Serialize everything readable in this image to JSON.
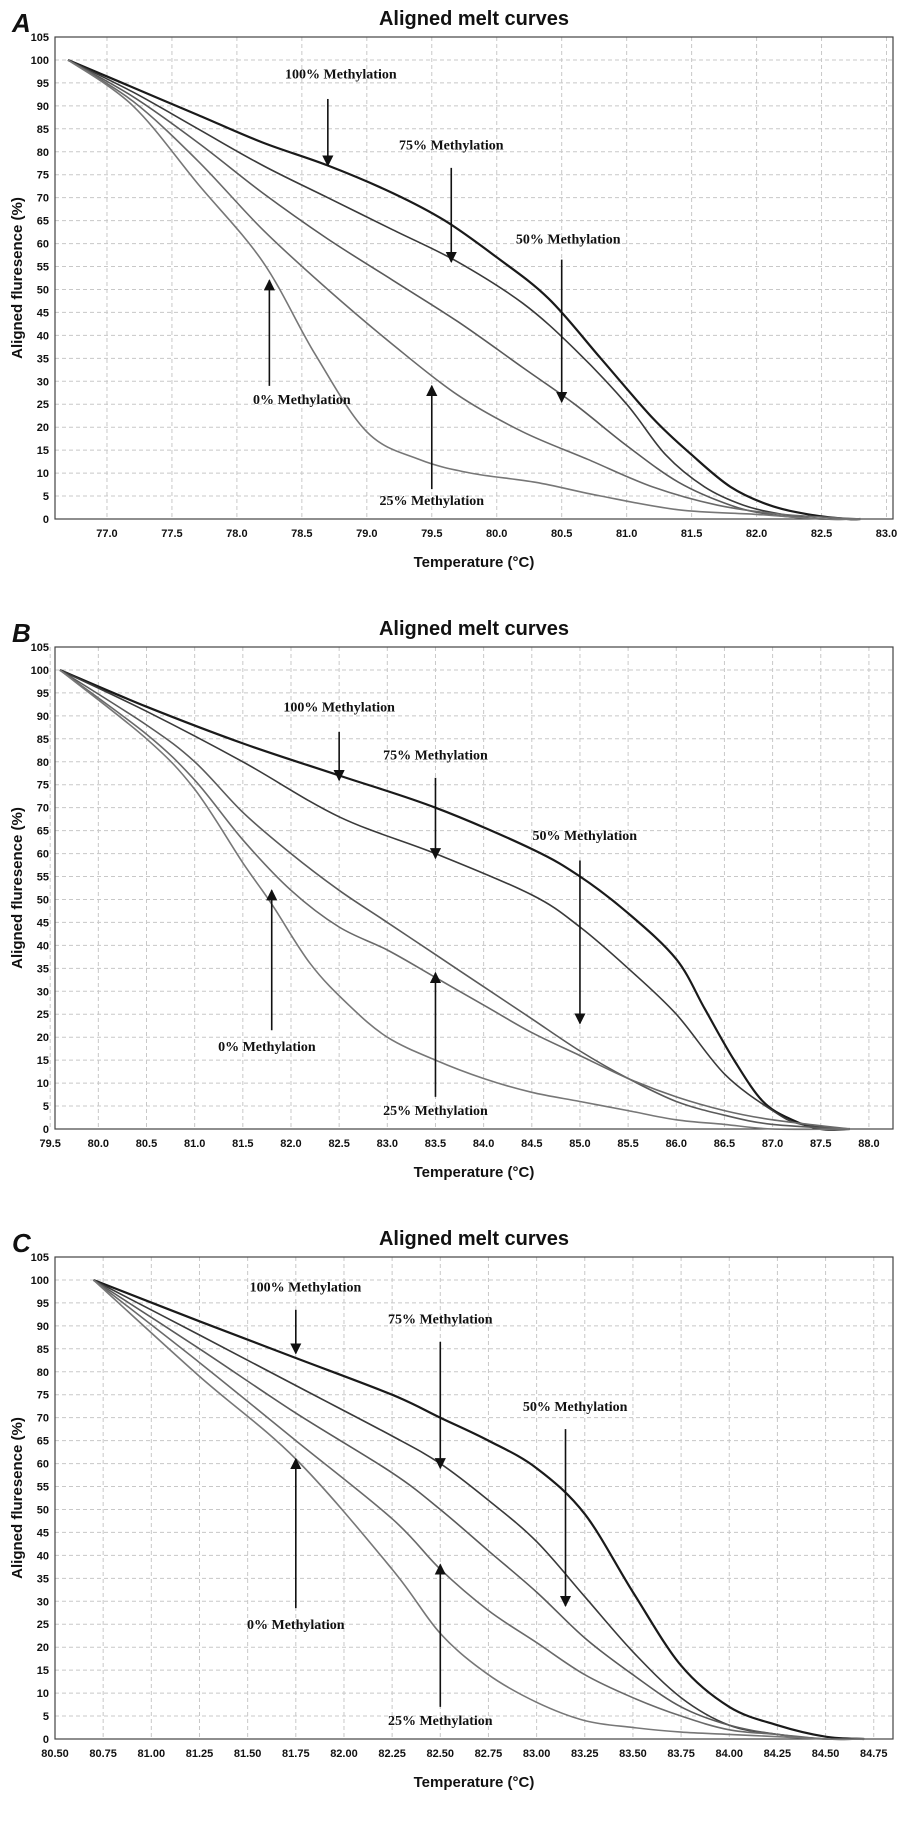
{
  "chart_data": [
    {
      "type": "line",
      "panel": "A",
      "title": "Aligned melt curves",
      "xlabel": "Temperature (°C)",
      "ylabel": "Aligned fluresence (%)",
      "xlim": [
        76.6,
        83.05
      ],
      "ylim": [
        0,
        105
      ],
      "xticks": [
        "77.0",
        "77.5",
        "78.0",
        "78.5",
        "79.0",
        "79.5",
        "80.0",
        "80.5",
        "81.0",
        "81.5",
        "82.0",
        "82.5",
        "83.0"
      ],
      "yticks": [
        0,
        5,
        10,
        15,
        20,
        25,
        30,
        35,
        40,
        45,
        50,
        55,
        60,
        65,
        70,
        75,
        80,
        85,
        90,
        95,
        100,
        105
      ],
      "grid": true,
      "series": [
        {
          "name": "100% Methylation",
          "color": "#1a1a1a",
          "x": [
            76.7,
            77.2,
            77.7,
            78.2,
            78.7,
            79.2,
            79.6,
            80.0,
            80.4,
            80.8,
            81.2,
            81.5,
            81.8,
            82.1,
            82.4,
            82.7,
            82.8
          ],
          "y": [
            100,
            94,
            88,
            82,
            77,
            71,
            65,
            57,
            48,
            35,
            22,
            14,
            7,
            3,
            1,
            0,
            0
          ]
        },
        {
          "name": "75% Methylation",
          "color": "#3a3a3a",
          "x": [
            76.7,
            77.2,
            77.7,
            78.2,
            78.7,
            79.2,
            79.7,
            80.2,
            80.6,
            81.0,
            81.3,
            81.6,
            81.9,
            82.2,
            82.5,
            82.8
          ],
          "y": [
            100,
            93,
            85,
            77,
            70,
            63,
            56,
            47,
            37,
            25,
            14,
            7,
            3,
            1,
            0,
            0
          ]
        },
        {
          "name": "50% Methylation",
          "color": "#5a5a5a",
          "x": [
            76.7,
            77.2,
            77.7,
            78.2,
            78.7,
            79.2,
            79.7,
            80.2,
            80.6,
            81.0,
            81.4,
            81.8,
            82.1,
            82.5,
            82.8
          ],
          "y": [
            100,
            92,
            82,
            71,
            61,
            52,
            43,
            33,
            25,
            16,
            8,
            3,
            1,
            0,
            0
          ]
        },
        {
          "name": "25% Methylation",
          "color": "#6a6a6a",
          "x": [
            76.7,
            77.2,
            77.7,
            78.2,
            78.7,
            79.2,
            79.7,
            80.2,
            80.7,
            81.2,
            81.7,
            82.2,
            82.8
          ],
          "y": [
            100,
            91,
            78,
            63,
            50,
            38,
            27,
            19,
            13,
            7,
            3,
            1,
            0
          ]
        },
        {
          "name": "0% Methylation",
          "color": "#777777",
          "x": [
            76.7,
            77.2,
            77.7,
            78.2,
            78.6,
            79.0,
            79.4,
            79.8,
            80.3,
            80.8,
            81.4,
            82.0,
            82.5,
            82.8
          ],
          "y": [
            100,
            90,
            73,
            56,
            36,
            19,
            13,
            10,
            8,
            5,
            2,
            1,
            0,
            0
          ]
        }
      ],
      "annotations": [
        {
          "text": "100% Methylation",
          "label_x": 78.8,
          "label_y": 96,
          "arrow_from": [
            78.7,
            91.5
          ],
          "arrow_to": [
            78.7,
            77
          ]
        },
        {
          "text": "75% Methylation",
          "label_x": 79.65,
          "label_y": 80.5,
          "arrow_from": [
            79.65,
            76.5
          ],
          "arrow_to": [
            79.65,
            56
          ]
        },
        {
          "text": "50% Methylation",
          "label_x": 80.55,
          "label_y": 60,
          "arrow_from": [
            80.5,
            56.5
          ],
          "arrow_to": [
            80.5,
            25.5
          ]
        },
        {
          "text": "0% Methylation",
          "label_x": 78.5,
          "label_y": 25,
          "arrow_from": [
            78.25,
            29
          ],
          "arrow_to": [
            78.25,
            52
          ]
        },
        {
          "text": "25% Methylation",
          "label_x": 79.5,
          "label_y": 3,
          "arrow_from": [
            79.5,
            6.5
          ],
          "arrow_to": [
            79.5,
            29
          ]
        }
      ]
    },
    {
      "type": "line",
      "panel": "B",
      "title": "Aligned melt curves",
      "xlabel": "Temperature (°C)",
      "ylabel": "Aligned fluresence (%)",
      "xlim": [
        79.55,
        88.25
      ],
      "ylim": [
        0,
        105
      ],
      "xticks": [
        "79.5",
        "80.0",
        "80.5",
        "81.0",
        "81.5",
        "82.0",
        "82.5",
        "83.0",
        "83.5",
        "84.0",
        "84.5",
        "85.0",
        "85.5",
        "86.0",
        "86.5",
        "87.0",
        "87.5",
        "88.0"
      ],
      "yticks": [
        0,
        5,
        10,
        15,
        20,
        25,
        30,
        35,
        40,
        45,
        50,
        55,
        60,
        65,
        70,
        75,
        80,
        85,
        90,
        95,
        100,
        105
      ],
      "grid": true,
      "series": [
        {
          "name": "100% Methylation",
          "color": "#1a1a1a",
          "x": [
            79.6,
            80.5,
            81.5,
            82.5,
            83.5,
            84.5,
            85.0,
            85.5,
            86.0,
            86.3,
            86.6,
            86.9,
            87.2,
            87.5,
            87.8
          ],
          "y": [
            100,
            92,
            84,
            77,
            70,
            61,
            55,
            47,
            37,
            26,
            15,
            6,
            2,
            0,
            0
          ]
        },
        {
          "name": "75% Methylation",
          "color": "#3a3a3a",
          "x": [
            79.6,
            80.5,
            81.5,
            82.5,
            83.5,
            84.5,
            85.0,
            85.5,
            86.0,
            86.5,
            87.0,
            87.3,
            87.8
          ],
          "y": [
            100,
            91,
            80,
            68,
            60,
            51,
            44,
            35,
            25,
            12,
            4,
            1,
            0
          ]
        },
        {
          "name": "50% Methylation",
          "color": "#5a5a5a",
          "x": [
            79.6,
            80.5,
            81.0,
            81.5,
            82.0,
            82.5,
            83.0,
            83.5,
            84.0,
            84.5,
            85.0,
            85.5,
            86.0,
            86.5,
            87.0,
            87.8
          ],
          "y": [
            100,
            88,
            80,
            69,
            60,
            52,
            45,
            38,
            31,
            24,
            17,
            11,
            6,
            3,
            1,
            0
          ]
        },
        {
          "name": "25% Methylation",
          "color": "#6a6a6a",
          "x": [
            79.6,
            80.5,
            81.0,
            81.5,
            82.0,
            82.5,
            83.0,
            83.5,
            84.0,
            84.5,
            85.0,
            85.5,
            86.0,
            86.5,
            87.0,
            87.8
          ],
          "y": [
            100,
            86,
            76,
            63,
            52,
            44,
            39,
            33,
            27,
            21,
            16,
            11,
            7,
            4,
            2,
            0
          ]
        },
        {
          "name": "0% Methylation",
          "color": "#777777",
          "x": [
            79.6,
            80.5,
            81.0,
            81.5,
            81.8,
            82.2,
            82.6,
            83.0,
            83.5,
            84.0,
            84.5,
            85.0,
            85.5,
            86.0,
            86.5,
            87.0,
            87.8
          ],
          "y": [
            100,
            85,
            74,
            58,
            49,
            36,
            27,
            20,
            15,
            11,
            8,
            6,
            4,
            2,
            1,
            0,
            0
          ]
        }
      ],
      "annotations": [
        {
          "text": "100% Methylation",
          "label_x": 82.5,
          "label_y": 91,
          "arrow_from": [
            82.5,
            86.5
          ],
          "arrow_to": [
            82.5,
            76
          ]
        },
        {
          "text": "75% Methylation",
          "label_x": 83.5,
          "label_y": 80.5,
          "arrow_from": [
            83.5,
            76.5
          ],
          "arrow_to": [
            83.5,
            59
          ]
        },
        {
          "text": "50% Methylation",
          "label_x": 85.05,
          "label_y": 63,
          "arrow_from": [
            85.0,
            58.5
          ],
          "arrow_to": [
            85.0,
            23
          ]
        },
        {
          "text": "0% Methylation",
          "label_x": 81.75,
          "label_y": 17,
          "arrow_from": [
            81.8,
            21.5
          ],
          "arrow_to": [
            81.8,
            52
          ]
        },
        {
          "text": "25% Methylation",
          "label_x": 83.5,
          "label_y": 3,
          "arrow_from": [
            83.5,
            7
          ],
          "arrow_to": [
            83.5,
            34
          ]
        }
      ]
    },
    {
      "type": "line",
      "panel": "C",
      "title": "Aligned melt curves",
      "xlabel": "Temperature (°C)",
      "ylabel": "Aligned fluresence (%)",
      "xlim": [
        80.5,
        84.85
      ],
      "ylim": [
        0,
        105
      ],
      "xticks": [
        "80.50",
        "80.75",
        "81.00",
        "81.25",
        "81.50",
        "81.75",
        "82.00",
        "82.25",
        "82.50",
        "82.75",
        "83.00",
        "83.25",
        "83.50",
        "83.75",
        "84.00",
        "84.25",
        "84.50",
        "84.75"
      ],
      "yticks": [
        0,
        5,
        10,
        15,
        20,
        25,
        30,
        35,
        40,
        45,
        50,
        55,
        60,
        65,
        70,
        75,
        80,
        85,
        90,
        95,
        100,
        105
      ],
      "grid": true,
      "series": [
        {
          "name": "100% Methylation",
          "color": "#1a1a1a",
          "x": [
            80.7,
            81.25,
            81.75,
            82.25,
            82.5,
            82.75,
            83.0,
            83.25,
            83.5,
            83.75,
            84.0,
            84.25,
            84.5,
            84.7
          ],
          "y": [
            100,
            91,
            83,
            75,
            70,
            65,
            59,
            49,
            32,
            16,
            7,
            3,
            0.5,
            0
          ]
        },
        {
          "name": "75% Methylation",
          "color": "#3a3a3a",
          "x": [
            80.7,
            81.25,
            81.75,
            82.25,
            82.5,
            82.75,
            83.0,
            83.25,
            83.5,
            83.75,
            84.0,
            84.25,
            84.5,
            84.7
          ],
          "y": [
            100,
            88,
            77,
            66,
            60,
            52,
            43,
            31,
            19,
            9,
            3,
            1,
            0,
            0
          ]
        },
        {
          "name": "50% Methylation",
          "color": "#5a5a5a",
          "x": [
            80.7,
            81.25,
            81.75,
            82.25,
            82.5,
            82.75,
            83.0,
            83.25,
            83.5,
            83.75,
            84.0,
            84.25,
            84.5,
            84.7
          ],
          "y": [
            100,
            85,
            71,
            58,
            50,
            41,
            32,
            22,
            14,
            7,
            3,
            1,
            0,
            0
          ]
        },
        {
          "name": "25% Methylation",
          "color": "#6a6a6a",
          "x": [
            80.7,
            81.25,
            81.75,
            82.25,
            82.5,
            82.75,
            83.0,
            83.25,
            83.5,
            83.75,
            84.0,
            84.25,
            84.5,
            84.7
          ],
          "y": [
            100,
            82,
            65,
            48,
            37,
            28,
            21,
            14,
            9,
            5,
            2,
            1,
            0,
            0
          ]
        },
        {
          "name": "0% Methylation",
          "color": "#777777",
          "x": [
            80.7,
            81.25,
            81.75,
            82.25,
            82.5,
            82.75,
            83.0,
            83.25,
            83.5,
            83.75,
            84.0,
            84.25,
            84.5,
            84.7
          ],
          "y": [
            100,
            79,
            61,
            37,
            23,
            14,
            8,
            4,
            2.5,
            1.5,
            1,
            0.5,
            0,
            0
          ]
        }
      ],
      "annotations": [
        {
          "text": "100% Methylation",
          "label_x": 81.8,
          "label_y": 97.5,
          "arrow_from": [
            81.75,
            93.5
          ],
          "arrow_to": [
            81.75,
            84
          ]
        },
        {
          "text": "75% Methylation",
          "label_x": 82.5,
          "label_y": 90.5,
          "arrow_from": [
            82.5,
            86.5
          ],
          "arrow_to": [
            82.5,
            59
          ]
        },
        {
          "text": "50% Methylation",
          "label_x": 83.2,
          "label_y": 71.5,
          "arrow_from": [
            83.15,
            67.5
          ],
          "arrow_to": [
            83.15,
            29
          ]
        },
        {
          "text": "0% Methylation",
          "label_x": 81.75,
          "label_y": 24,
          "arrow_from": [
            81.75,
            28.5
          ],
          "arrow_to": [
            81.75,
            61
          ]
        },
        {
          "text": "25% Methylation",
          "label_x": 82.5,
          "label_y": 3,
          "arrow_from": [
            82.5,
            7
          ],
          "arrow_to": [
            82.5,
            38
          ]
        }
      ]
    }
  ]
}
